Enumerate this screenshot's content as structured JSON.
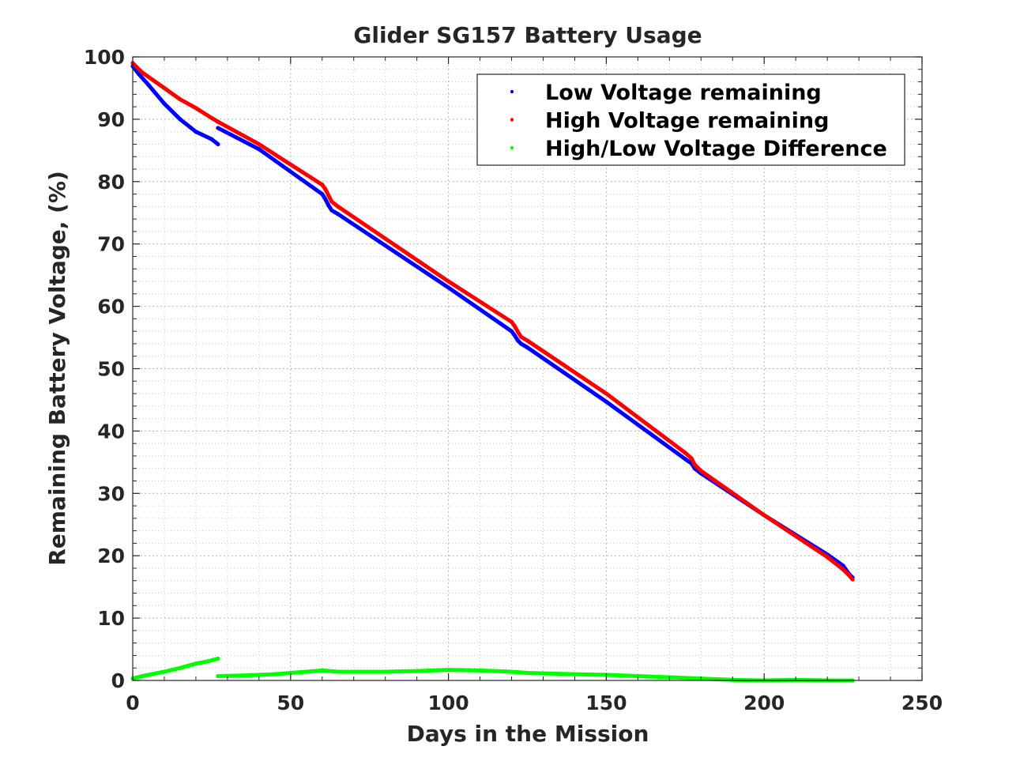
{
  "chart_data": {
    "type": "scatter",
    "title": "Glider SG157 Battery Usage",
    "xlabel": "Days in the Mission",
    "ylabel": "Remaining Battery Voltage, (%)",
    "xlim": [
      0,
      250
    ],
    "ylim": [
      0,
      100
    ],
    "xticks": [
      0,
      50,
      100,
      150,
      200,
      250
    ],
    "yticks": [
      0,
      10,
      20,
      30,
      40,
      50,
      60,
      70,
      80,
      90,
      100
    ],
    "xtick_labels": [
      "0",
      "50",
      "100",
      "150",
      "200",
      "250"
    ],
    "ytick_labels": [
      "0",
      "10",
      "20",
      "30",
      "40",
      "50",
      "60",
      "70",
      "80",
      "90",
      "100"
    ],
    "grid": true,
    "minor_grid": true,
    "legend_position": "top-right",
    "series": [
      {
        "name": "Low Voltage remaining",
        "color": "#0000ff",
        "marker": "dot",
        "segments": [
          [
            [
              0,
              98.5
            ],
            [
              2,
              97.2
            ],
            [
              5,
              95.5
            ],
            [
              10,
              92.5
            ],
            [
              15,
              90.0
            ],
            [
              20,
              88.0
            ],
            [
              25,
              86.8
            ],
            [
              27,
              86.0
            ]
          ],
          [
            [
              27,
              88.6
            ],
            [
              40,
              85.2
            ],
            [
              60,
              78.0
            ],
            [
              61,
              77.2
            ],
            [
              62,
              76.2
            ],
            [
              63,
              75.4
            ],
            [
              65,
              74.8
            ],
            [
              100,
              63.0
            ],
            [
              120,
              56.0
            ],
            [
              121,
              55.3
            ],
            [
              122,
              54.5
            ],
            [
              123,
              54.0
            ],
            [
              125,
              53.4
            ],
            [
              150,
              44.7
            ],
            [
              175,
              35.5
            ],
            [
              177,
              34.8
            ],
            [
              178,
              34.0
            ],
            [
              180,
              33.2
            ],
            [
              200,
              26.5
            ],
            [
              220,
              20.2
            ],
            [
              225,
              18.4
            ],
            [
              227,
              17.0
            ],
            [
              228,
              16.5
            ]
          ]
        ]
      },
      {
        "name": "High Voltage remaining",
        "color": "#ff0000",
        "marker": "dot",
        "segments": [
          [
            [
              0,
              99.0
            ],
            [
              3,
              97.5
            ],
            [
              10,
              95.0
            ],
            [
              15,
              93.2
            ],
            [
              20,
              91.8
            ],
            [
              25,
              90.2
            ],
            [
              27,
              89.6
            ]
          ],
          [
            [
              27,
              89.6
            ],
            [
              40,
              86.0
            ],
            [
              60,
              79.5
            ],
            [
              61,
              78.8
            ],
            [
              62,
              77.8
            ],
            [
              63,
              76.8
            ],
            [
              65,
              76.0
            ],
            [
              100,
              64.0
            ],
            [
              120,
              57.5
            ],
            [
              121,
              56.8
            ],
            [
              122,
              55.9
            ],
            [
              123,
              55.1
            ],
            [
              125,
              54.5
            ],
            [
              150,
              46.0
            ],
            [
              175,
              36.5
            ],
            [
              177,
              35.6
            ],
            [
              178,
              34.6
            ],
            [
              180,
              33.6
            ],
            [
              200,
              26.5
            ],
            [
              220,
              19.8
            ],
            [
              225,
              17.8
            ],
            [
              227,
              16.8
            ],
            [
              228,
              16.2
            ]
          ]
        ]
      },
      {
        "name": "High/Low Voltage Difference",
        "color": "#00ff00",
        "marker": "dot",
        "segments": [
          [
            [
              0,
              0.3
            ],
            [
              3,
              0.7
            ],
            [
              6,
              1.0
            ],
            [
              10,
              1.4
            ],
            [
              15,
              2.0
            ],
            [
              20,
              2.7
            ],
            [
              24,
              3.1
            ],
            [
              27,
              3.5
            ]
          ],
          [
            [
              27,
              0.7
            ],
            [
              35,
              0.8
            ],
            [
              45,
              1.0
            ],
            [
              55,
              1.4
            ],
            [
              60,
              1.6
            ],
            [
              65,
              1.4
            ],
            [
              80,
              1.4
            ],
            [
              90,
              1.5
            ],
            [
              100,
              1.7
            ],
            [
              110,
              1.6
            ],
            [
              120,
              1.4
            ],
            [
              125,
              1.2
            ],
            [
              140,
              1.0
            ],
            [
              150,
              0.9
            ],
            [
              160,
              0.7
            ],
            [
              170,
              0.5
            ],
            [
              180,
              0.3
            ],
            [
              190,
              0.1
            ],
            [
              200,
              0.0
            ],
            [
              210,
              0.1
            ],
            [
              220,
              0.0
            ],
            [
              228,
              0.0
            ]
          ]
        ]
      }
    ]
  }
}
